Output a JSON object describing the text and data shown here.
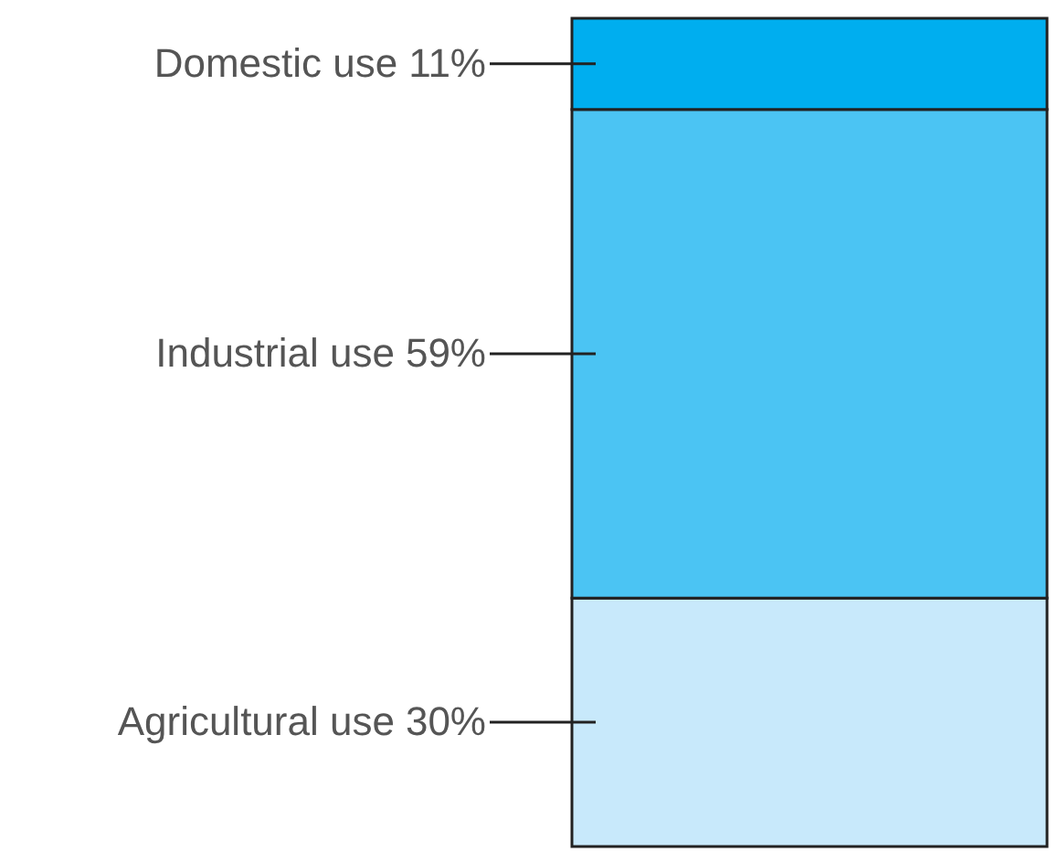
{
  "chart_data": {
    "type": "bar",
    "stacked": true,
    "tick_labels": false,
    "categories": [
      null
    ],
    "series": [
      {
        "color": "#c8e9fb",
        "values": [
          30
        ],
        "value_labels": [
          "30%"
        ]
      },
      {
        "color": "#4bc4f3",
        "values": [
          59
        ],
        "value_labels": [
          "59%"
        ]
      },
      {
        "color": "#00aeef",
        "values": [
          11
        ],
        "value_labels": [
          "11%"
        ]
      }
    ],
    "annotations": [
      "Agricultural use",
      "Industrial use",
      "Domestic use"
    ]
  }
}
